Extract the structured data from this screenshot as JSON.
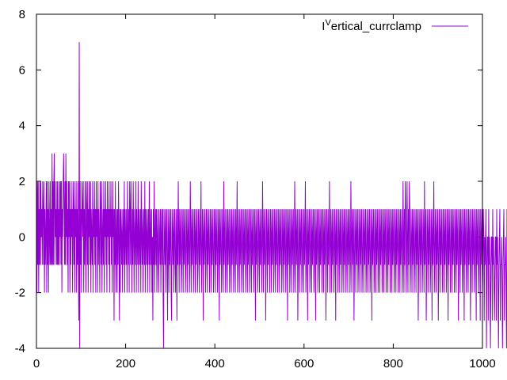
{
  "chart_data": {
    "type": "line",
    "legend": {
      "label": "I^Vertical_currclamp",
      "placement": "top-right"
    },
    "series": [
      {
        "name": "I^Vertical_currclamp",
        "color": "#9400d3",
        "x_start": 0,
        "x_step": 1,
        "values": [
          2,
          -2,
          2,
          -1,
          2,
          -2,
          1,
          -1,
          2,
          -1,
          2,
          0,
          1,
          -1,
          2,
          1,
          -1,
          2,
          -2,
          1,
          -1,
          0,
          2,
          -2,
          2,
          -1,
          1,
          -2,
          2,
          0,
          -1,
          2,
          -1,
          1,
          -1,
          3,
          -1,
          2,
          -1,
          2,
          3,
          -1,
          2,
          0,
          1,
          -1,
          2,
          -1,
          2,
          -1,
          1,
          -1,
          2,
          0,
          2,
          -1,
          2,
          -2,
          1,
          0,
          2,
          3,
          1,
          -1,
          2,
          -1,
          3,
          0,
          2,
          -1,
          1,
          -2,
          2,
          0,
          2,
          -2,
          1,
          -1,
          2,
          0,
          1,
          -2,
          2,
          1,
          -1,
          2,
          -2,
          1,
          0,
          2,
          -2,
          1,
          -1,
          2,
          -1,
          -3,
          7,
          -4,
          2,
          -1,
          1,
          -2,
          2,
          1,
          0,
          2,
          -2,
          1,
          -1,
          2,
          0,
          -2,
          2,
          1,
          -1,
          2,
          -2,
          1,
          0,
          2,
          -1,
          2,
          -2,
          1,
          0,
          -1,
          2,
          -2,
          1,
          0,
          2,
          -1,
          1,
          -2,
          2,
          0,
          1,
          -2,
          2,
          -1,
          1,
          0,
          -2,
          2,
          1,
          -1,
          2,
          -2,
          0,
          1,
          -1,
          2,
          -2,
          1,
          0,
          2,
          -1,
          1,
          -2,
          2,
          0,
          1,
          -1,
          2,
          -2,
          1,
          0,
          2,
          -1,
          1,
          -2,
          2,
          0,
          1,
          -3,
          1,
          -1,
          2,
          -2,
          0,
          1,
          -2,
          1,
          -1,
          2,
          0,
          -3,
          1,
          -2,
          1,
          0,
          -1,
          1,
          -2,
          0,
          1,
          -1,
          2,
          -2,
          1,
          0,
          -1,
          1,
          -2,
          2,
          0,
          -1,
          1,
          -2,
          2,
          1,
          -1,
          2,
          0,
          -2,
          1,
          -1,
          2,
          0,
          -2,
          1,
          0,
          -1,
          2,
          -2,
          1,
          0,
          -1,
          2,
          -2,
          1,
          0,
          -1,
          1,
          -2,
          2,
          0,
          -1,
          1,
          -2,
          0,
          1,
          -1,
          2,
          -2,
          1,
          0,
          -1,
          1,
          -2,
          0,
          1,
          -1,
          2,
          -2,
          0,
          1,
          -1,
          1,
          -2,
          0,
          -3,
          1,
          -1,
          2,
          -2,
          0,
          1,
          -1,
          1,
          -2,
          0,
          1,
          -1,
          -2,
          1,
          0,
          -1,
          1,
          -2,
          0,
          1,
          -1,
          1,
          -2,
          -4,
          1,
          0,
          -1,
          1,
          -2,
          0,
          1,
          -1,
          -3,
          1,
          0,
          -2,
          1,
          -1,
          0,
          1,
          -2,
          -3,
          1,
          0,
          -1,
          1,
          -2,
          0,
          1,
          -1,
          -2,
          1,
          0,
          -3,
          1,
          -1,
          2,
          0,
          -2,
          1,
          -1,
          0,
          1,
          -2,
          -1,
          1,
          0,
          -2,
          1,
          -1,
          0,
          1,
          -2,
          -1,
          1,
          0,
          -2,
          1,
          -1,
          0,
          1,
          -2,
          -1,
          2,
          0,
          -2,
          1,
          -1,
          0,
          1,
          -2,
          -1,
          1,
          0,
          -2,
          1,
          -1,
          0,
          1,
          -2,
          -1,
          1,
          0,
          -2,
          1,
          -1,
          0,
          2,
          -2,
          -1,
          1,
          0,
          -3,
          1,
          -1,
          0,
          1,
          -2,
          -1,
          1,
          0,
          -2,
          1,
          -1,
          0,
          1,
          -2,
          -1,
          1,
          0,
          -2,
          1,
          -1,
          0,
          1,
          -2,
          -1,
          1,
          0,
          -2,
          1,
          -1,
          0,
          1,
          -2,
          -1,
          1,
          0,
          -3,
          1,
          -1,
          0,
          1,
          -2,
          -1,
          1,
          0,
          -2,
          2,
          -1,
          0,
          1,
          -2,
          -1,
          1,
          0,
          -2,
          1,
          -1,
          0,
          1,
          -2,
          -1,
          1,
          0,
          -2,
          1,
          -1,
          0,
          1,
          -2,
          -1,
          1,
          0,
          -2,
          1,
          -1,
          0,
          2,
          -2,
          -1,
          1,
          0,
          -2,
          1,
          -1,
          0,
          1,
          -2,
          -1,
          1,
          0,
          -2,
          1,
          -1,
          0,
          1,
          -2,
          -1,
          1,
          0,
          -2,
          1,
          -1,
          0,
          1,
          -2,
          -1,
          1,
          0,
          -2,
          1,
          -1,
          0,
          1,
          -2,
          -1,
          1,
          0,
          -3,
          1,
          -1,
          0,
          1,
          -2,
          -1,
          1,
          0,
          -2,
          1,
          -1,
          0,
          1,
          -2,
          -1,
          2,
          0,
          -2,
          1,
          -1,
          0,
          1,
          -3,
          -1,
          1,
          0,
          -2,
          1,
          -1,
          0,
          1,
          -2,
          -1,
          1,
          0,
          -2,
          1,
          -1,
          0,
          1,
          -2,
          -1,
          1,
          0,
          -2,
          1,
          -1,
          0,
          1,
          -2,
          -1,
          1,
          0,
          -2,
          1,
          -1,
          0,
          1,
          -2,
          -1,
          1,
          0,
          -2,
          1,
          -1,
          0,
          1,
          -2,
          -1,
          1,
          0,
          -3,
          1,
          -1,
          0,
          1,
          -2,
          -1,
          1,
          0,
          -2,
          1,
          -1,
          0,
          1,
          -2,
          -1,
          2,
          0,
          -2,
          1,
          -1,
          0,
          1,
          -3,
          -1,
          1,
          0,
          -2,
          1,
          -1,
          0,
          1,
          -2,
          -1,
          1,
          0,
          -2,
          1,
          -1,
          0,
          2,
          -2,
          -1,
          1,
          0,
          -3,
          1,
          -1,
          0,
          1,
          -2,
          -1,
          1,
          0,
          -2,
          1,
          -1,
          0,
          1,
          -2,
          -1,
          1,
          0,
          -3,
          1,
          -1,
          0,
          1,
          -2,
          -1,
          1,
          0,
          -2,
          1,
          -1,
          0,
          1,
          -2,
          -1,
          1,
          0,
          -2,
          1,
          -1,
          0,
          1,
          -3,
          -1,
          1,
          0,
          -2,
          1,
          -1,
          0,
          2,
          -2,
          -1,
          1,
          0,
          -2,
          1,
          -1,
          0,
          1,
          -2,
          -1,
          1,
          0,
          -3,
          1,
          -1,
          0,
          1,
          -2,
          -1,
          1,
          0,
          -2,
          1,
          -1,
          0,
          1,
          -2,
          -1,
          1,
          0,
          -2,
          1,
          -1,
          0,
          1,
          -2,
          -1,
          1,
          0,
          -2,
          1,
          -1,
          0,
          1,
          -2,
          -1,
          2,
          0,
          -2,
          1,
          -1,
          0,
          1,
          -3,
          -1,
          1,
          0,
          -2,
          1,
          -1,
          0,
          1,
          -2,
          -1,
          1,
          0,
          -2,
          1,
          -1,
          0,
          1,
          -2,
          -1,
          1,
          0,
          -2,
          1,
          -1,
          0,
          1,
          -2,
          -1,
          1,
          0,
          -2,
          1,
          -1,
          0,
          1,
          -2,
          -1,
          1,
          0,
          -3,
          1,
          -1,
          0,
          1,
          -2,
          -1,
          1,
          0,
          -2,
          1,
          -1,
          0,
          1,
          -2,
          -1,
          1,
          0,
          -2,
          1,
          -1,
          0,
          1,
          -2,
          -1,
          1,
          0,
          -2,
          1,
          -1,
          0,
          1,
          -2,
          -1,
          1,
          0,
          -2,
          1,
          -1,
          0,
          1,
          -2,
          -1,
          1,
          0,
          -2,
          1,
          -1,
          0,
          1,
          -2,
          -1,
          1,
          0,
          -2,
          1,
          -1,
          0,
          1,
          -2,
          -1,
          1,
          0,
          -2,
          1,
          -1,
          0,
          1,
          -2,
          -1,
          2,
          0,
          -2,
          1,
          -1,
          2,
          1,
          -2,
          -1,
          2,
          0,
          -2,
          1,
          -1,
          2,
          1,
          -2,
          -1,
          1,
          0,
          -2,
          1,
          -1,
          0,
          1,
          -2,
          -1,
          1,
          0,
          -2,
          1,
          -1,
          0,
          1,
          -3,
          -1,
          1,
          0,
          -2,
          1,
          -1,
          0,
          1,
          -2,
          -1,
          1,
          0,
          -2,
          2,
          -1,
          0,
          1,
          -3,
          -1,
          1,
          0,
          -2,
          1,
          -1,
          0,
          1,
          -2,
          -1,
          1,
          0,
          -3,
          1,
          -1,
          0,
          2,
          -2,
          -1,
          1,
          0,
          -2,
          1,
          -1,
          0,
          1,
          -3,
          -1,
          1,
          0,
          -2,
          1,
          -1,
          0,
          1,
          -2,
          -1,
          1,
          0,
          -2,
          1,
          -1,
          0,
          1,
          -2,
          -1,
          1,
          0,
          -3,
          1,
          -1,
          0,
          1,
          -2,
          -1,
          1,
          0,
          -2,
          1,
          -1,
          0,
          1,
          -2,
          -1,
          1,
          0,
          -2,
          1,
          -1,
          0,
          1,
          -3,
          -1,
          1,
          0,
          -2,
          1,
          -1,
          0,
          1,
          -2,
          -1,
          1,
          0,
          -3,
          1,
          -1,
          0,
          1,
          -2,
          -1,
          1,
          0,
          -2,
          1,
          -1,
          0,
          1,
          -3,
          -1,
          1,
          0,
          -2,
          1,
          -1,
          0,
          1,
          -2,
          -1,
          1,
          0,
          -3,
          1,
          -1,
          0,
          1,
          -2,
          -1,
          1,
          0,
          -3,
          1,
          -1,
          0,
          1,
          -2,
          -1,
          1,
          0,
          -3,
          0,
          -1,
          0,
          1,
          -4,
          -1,
          0,
          0,
          -3,
          1,
          -1,
          0,
          -2,
          -4,
          -1,
          0,
          0,
          -3,
          1,
          -1,
          0,
          -2,
          -3,
          -1,
          0,
          0,
          -3,
          1,
          -1,
          0,
          -2,
          -4,
          -1,
          0,
          1,
          -3,
          -1,
          -1,
          0,
          -2,
          -4,
          -1,
          0,
          1,
          -3,
          -1,
          -1,
          0,
          -2,
          -4,
          1,
          0,
          -1,
          -3,
          -1,
          -1,
          0,
          -2,
          -3,
          1,
          0,
          -1
        ]
      }
    ],
    "xlim": [
      0,
      1000
    ],
    "ylim": [
      -4,
      8
    ],
    "x_ticks": [
      0,
      200,
      400,
      600,
      800,
      1000
    ],
    "y_ticks": [
      -4,
      -2,
      0,
      2,
      4,
      6,
      8
    ],
    "title": "",
    "xlabel": "",
    "ylabel": "",
    "grid": false
  }
}
